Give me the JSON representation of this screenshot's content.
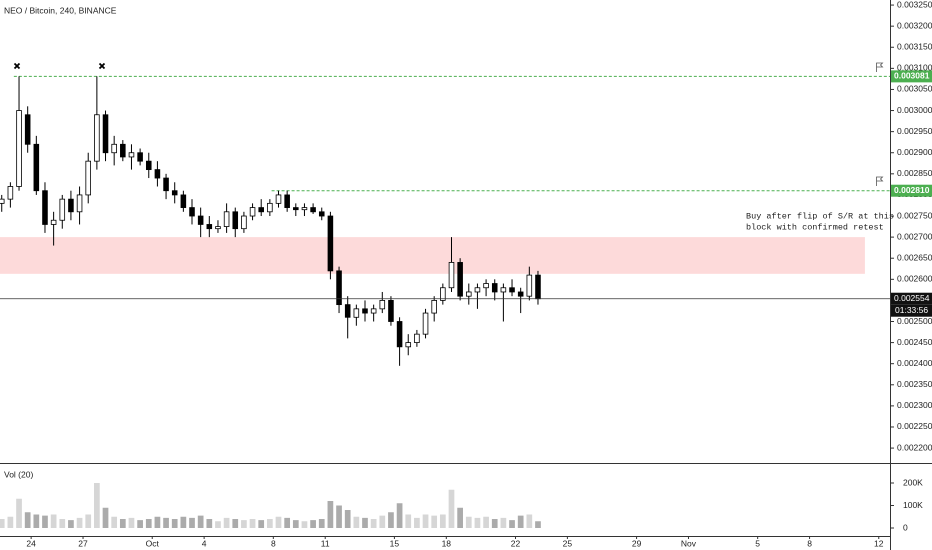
{
  "chart_data": {
    "type": "candlestick",
    "title": "NEO / Bitcoin, 240, BINANCE",
    "volume_title": "Vol (20)",
    "x": [
      0.3,
      0.8,
      1.3,
      1.8,
      2.3,
      2.8,
      3.3,
      3.8,
      4.3,
      4.8,
      5.3,
      5.8,
      6.3,
      6.8,
      7.3,
      7.8,
      8.3,
      8.8,
      9.3,
      9.8,
      10.3,
      10.8,
      11.3,
      11.8,
      12.3,
      12.8,
      13.3,
      13.8,
      14.3,
      14.8,
      15.3,
      15.8,
      16.3,
      16.8,
      17.3,
      17.8,
      18.3,
      18.8,
      19.3,
      19.8,
      20.3,
      20.8,
      21.3,
      21.8,
      22.3,
      22.8,
      23.3,
      23.8,
      24.3,
      24.8,
      25.3,
      25.8,
      26.3,
      26.8,
      27.3,
      27.8,
      28.3,
      28.8,
      29.3,
      29.8,
      30.3,
      30.8,
      31.3
    ],
    "open": [
      0.00278,
      0.00279,
      0.00282,
      0.00299,
      0.00292,
      0.00281,
      0.00273,
      0.00274,
      0.00279,
      0.00276,
      0.0028,
      0.00288,
      0.00299,
      0.0029,
      0.00292,
      0.00289,
      0.0029,
      0.00288,
      0.00286,
      0.00284,
      0.00281,
      0.0028,
      0.00277,
      0.00275,
      0.00273,
      0.00272,
      0.002725,
      0.00276,
      0.00272,
      0.00275,
      0.00277,
      0.00276,
      0.00278,
      0.0028,
      0.00277,
      0.002765,
      0.00277,
      0.00276,
      0.00275,
      0.00262,
      0.00254,
      0.00251,
      0.00253,
      0.00252,
      0.00253,
      0.00255,
      0.0025,
      0.00244,
      0.00245,
      0.00247,
      0.00252,
      0.00255,
      0.00258,
      0.00264,
      0.00256,
      0.00257,
      0.00258,
      0.00259,
      0.00257,
      0.00258,
      0.00257,
      0.00256,
      0.00261
    ],
    "high": [
      0.0028,
      0.00283,
      0.003081,
      0.00301,
      0.00294,
      0.00283,
      0.00276,
      0.0028,
      0.00281,
      0.00282,
      0.0029,
      0.003081,
      0.003,
      0.00294,
      0.00293,
      0.00292,
      0.00291,
      0.0029,
      0.00288,
      0.00285,
      0.00283,
      0.00281,
      0.00279,
      0.00277,
      0.00275,
      0.00274,
      0.00278,
      0.00277,
      0.00276,
      0.00278,
      0.00279,
      0.00279,
      0.00281,
      0.00281,
      0.00278,
      0.00278,
      0.00278,
      0.00277,
      0.00276,
      0.00263,
      0.00256,
      0.00254,
      0.00255,
      0.00254,
      0.00257,
      0.00256,
      0.00251,
      0.00247,
      0.00248,
      0.00253,
      0.00256,
      0.00259,
      0.0027,
      0.00265,
      0.00259,
      0.00259,
      0.0026,
      0.0026,
      0.00259,
      0.0026,
      0.00258,
      0.00263,
      0.00262
    ],
    "low": [
      0.00276,
      0.00277,
      0.00281,
      0.0029,
      0.0028,
      0.00271,
      0.00268,
      0.00272,
      0.00274,
      0.00273,
      0.00278,
      0.00286,
      0.00288,
      0.00287,
      0.00288,
      0.00286,
      0.00287,
      0.00284,
      0.00282,
      0.00279,
      0.00278,
      0.00276,
      0.00273,
      0.0027,
      0.0027,
      0.00271,
      0.00271,
      0.0027,
      0.00271,
      0.00274,
      0.00275,
      0.00275,
      0.00277,
      0.00276,
      0.00275,
      0.00275,
      0.002755,
      0.00274,
      0.0026,
      0.00252,
      0.00246,
      0.00249,
      0.0025,
      0.0025,
      0.00252,
      0.00249,
      0.002395,
      0.00242,
      0.00244,
      0.00246,
      0.0025,
      0.00254,
      0.00257,
      0.00255,
      0.00254,
      0.00253,
      0.00256,
      0.00255,
      0.0025,
      0.00256,
      0.00252,
      0.00255,
      0.00254
    ],
    "close": [
      0.00279,
      0.00282,
      0.003,
      0.00292,
      0.00281,
      0.00273,
      0.00274,
      0.00279,
      0.00276,
      0.0028,
      0.00288,
      0.00299,
      0.0029,
      0.00292,
      0.00289,
      0.0029,
      0.00288,
      0.00286,
      0.00284,
      0.00281,
      0.0028,
      0.00277,
      0.00275,
      0.00273,
      0.00272,
      0.002725,
      0.00276,
      0.00272,
      0.00275,
      0.00277,
      0.00276,
      0.00278,
      0.0028,
      0.00277,
      0.002765,
      0.00277,
      0.00276,
      0.00275,
      0.00262,
      0.00254,
      0.00251,
      0.00253,
      0.00252,
      0.00253,
      0.00255,
      0.0025,
      0.00244,
      0.00245,
      0.00247,
      0.00252,
      0.00255,
      0.00258,
      0.00264,
      0.00256,
      0.00257,
      0.00258,
      0.00259,
      0.00257,
      0.00258,
      0.00257,
      0.00256,
      0.00261,
      0.002554
    ],
    "volume": [
      40000,
      50000,
      130000,
      70000,
      60000,
      55000,
      60000,
      40000,
      35000,
      45000,
      60000,
      200000,
      90000,
      50000,
      40000,
      45000,
      35000,
      40000,
      50000,
      45000,
      40000,
      50000,
      45000,
      55000,
      40000,
      30000,
      45000,
      40000,
      35000,
      40000,
      35000,
      40000,
      50000,
      45000,
      35000,
      30000,
      35000,
      40000,
      120000,
      100000,
      80000,
      50000,
      45000,
      40000,
      55000,
      70000,
      110000,
      60000,
      45000,
      60000,
      55000,
      60000,
      170000,
      90000,
      50000,
      45000,
      50000,
      40000,
      45000,
      35000,
      55000,
      60000,
      30000
    ],
    "up_color": "#ffffff",
    "down_color": "#000000",
    "volume_up_color": "#d6d6d6",
    "volume_down_color": "#ababab",
    "xlim": [
      0.2,
      51.65
    ],
    "xticks": [
      {
        "value": 2,
        "label": "24"
      },
      {
        "value": 5,
        "label": "27"
      },
      {
        "value": 9,
        "label": "Oct"
      },
      {
        "value": 12,
        "label": "4"
      },
      {
        "value": 16,
        "label": "8"
      },
      {
        "value": 19,
        "label": "11"
      },
      {
        "value": 23,
        "label": "15"
      },
      {
        "value": 26,
        "label": "18"
      },
      {
        "value": 30,
        "label": "22"
      },
      {
        "value": 33,
        "label": "25"
      },
      {
        "value": 37,
        "label": "29"
      },
      {
        "value": 40,
        "label": "Nov"
      },
      {
        "value": 44,
        "label": "5"
      },
      {
        "value": 47,
        "label": "8"
      },
      {
        "value": 51,
        "label": "12"
      }
    ],
    "ylim": [
      0.002167,
      0.003262
    ],
    "yticks": [
      {
        "value": 0.00325,
        "label": "0.003250"
      },
      {
        "value": 0.0032,
        "label": "0.003200"
      },
      {
        "value": 0.00315,
        "label": "0.003150"
      },
      {
        "value": 0.0031,
        "label": "0.003100"
      },
      {
        "value": 0.00305,
        "label": "0.003050"
      },
      {
        "value": 0.003,
        "label": "0.003000"
      },
      {
        "value": 0.00295,
        "label": "0.002950"
      },
      {
        "value": 0.0029,
        "label": "0.002900"
      },
      {
        "value": 0.00285,
        "label": "0.002850"
      },
      {
        "value": 0.0028,
        "label": "0.002800"
      },
      {
        "value": 0.00275,
        "label": "0.002750"
      },
      {
        "value": 0.0027,
        "label": "0.002700"
      },
      {
        "value": 0.00265,
        "label": "0.002650"
      },
      {
        "value": 0.0026,
        "label": "0.002600"
      },
      {
        "value": 0.00255,
        "label": "0.002550"
      },
      {
        "value": 0.0025,
        "label": "0.002500"
      },
      {
        "value": 0.00245,
        "label": "0.002450"
      },
      {
        "value": 0.0024,
        "label": "0.002400"
      },
      {
        "value": 0.00235,
        "label": "0.002350"
      },
      {
        "value": 0.0023,
        "label": "0.002300"
      },
      {
        "value": 0.00225,
        "label": "0.002250"
      },
      {
        "value": 0.0022,
        "label": "0.002200"
      }
    ],
    "volume_ylim": [
      0,
      280000
    ],
    "volume_ticks": [
      {
        "value": 200000,
        "label": "200K"
      },
      {
        "value": 100000,
        "label": "100K"
      },
      0
    ],
    "levels": [
      {
        "value": 0.003081,
        "label": "0.003081",
        "from": 1.0,
        "color": "#4caf50"
      },
      {
        "value": 0.00281,
        "label": "0.002810",
        "from": 15.9,
        "color": "#4caf50"
      }
    ],
    "zone": {
      "low": 0.002613,
      "high": 0.0027,
      "from": 0.2,
      "to": 50.2,
      "color": "#fddada"
    },
    "annotation": [
      "Buy after flip of S/R at this",
      "block with confirmed retest"
    ],
    "countdown": "01:33:56"
  }
}
